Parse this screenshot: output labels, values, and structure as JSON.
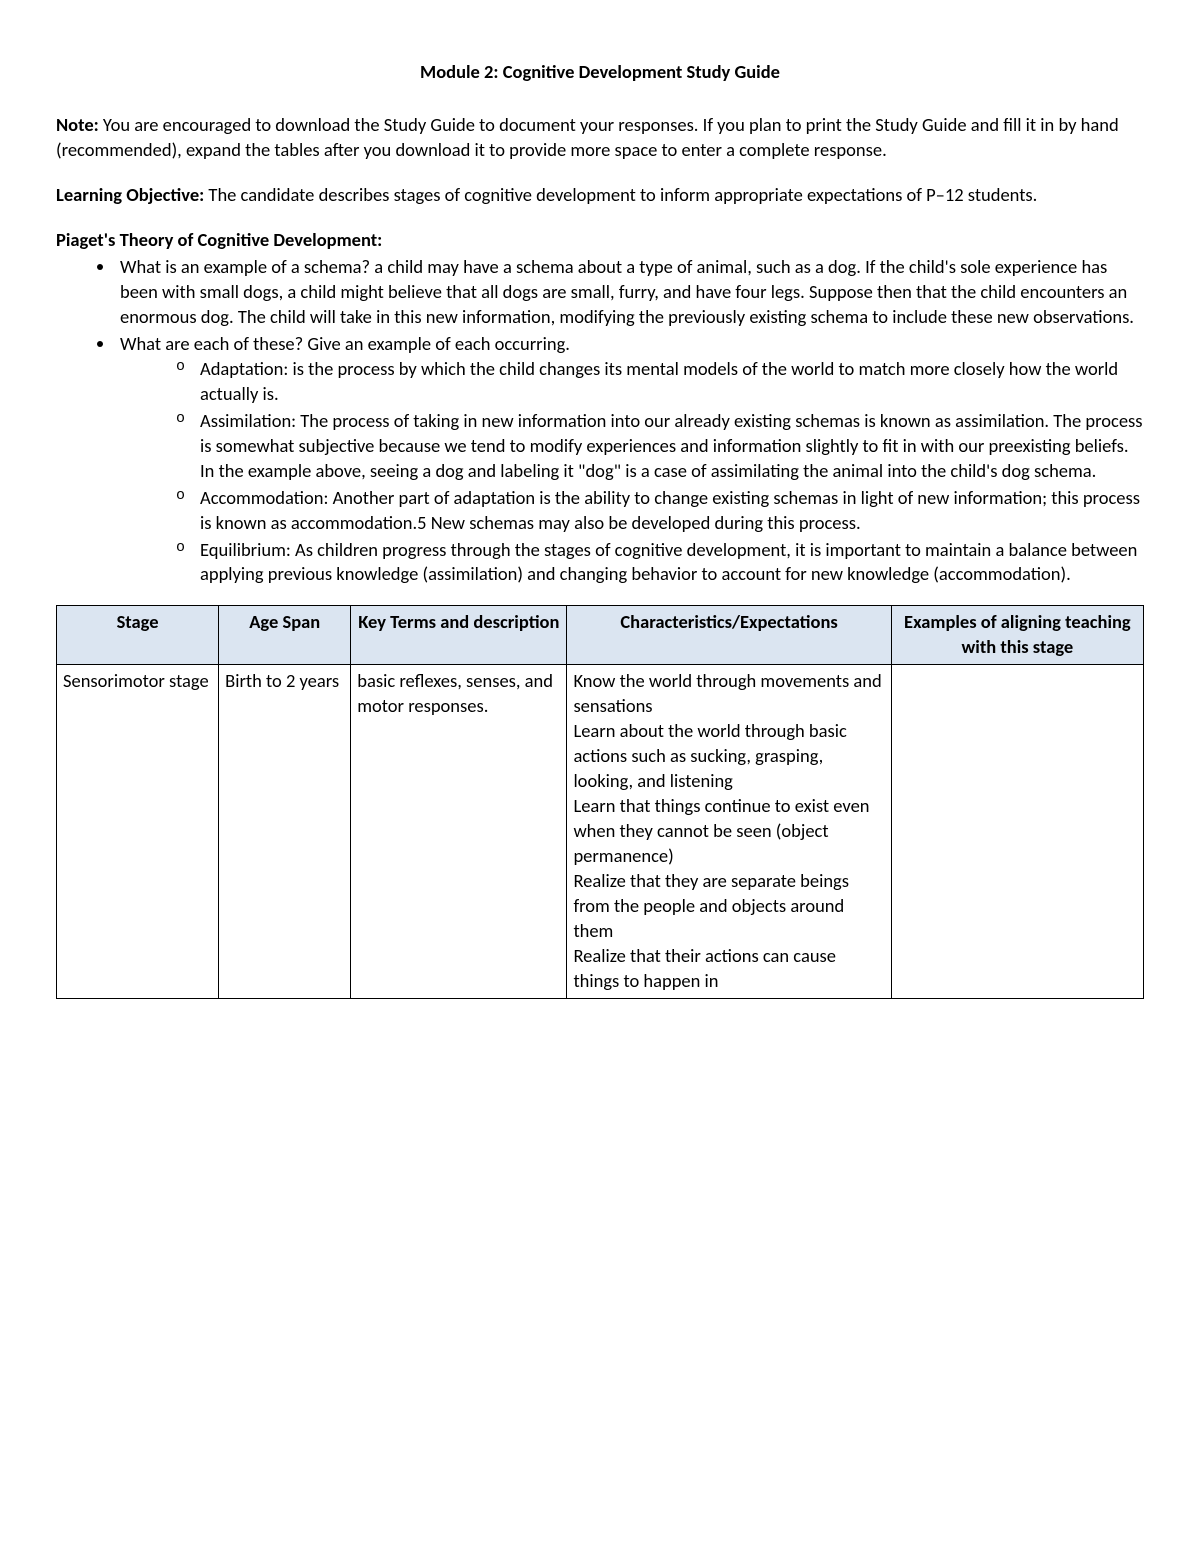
{
  "title": "Module 2: Cognitive Development Study Guide",
  "note": {
    "label": "Note:",
    "text": " You are encouraged to download the Study Guide to document your responses. If you plan to print the Study Guide and fill it in by hand (recommended), expand the tables after you download it to provide more space to enter a complete response."
  },
  "objective": {
    "label": "Learning Objective:",
    "text": "  The candidate describes stages of cognitive development to inform appropriate expectations of P–12 students."
  },
  "piaget": {
    "heading": "Piaget's Theory of Cognitive Development:",
    "bullets": [
      {
        "text": "What is an example of a schema? a child may have a schema about a type of animal, such as a dog. If the child's sole experience has been with small dogs, a child might believe that all dogs are small, furry, and have four legs. Suppose then that the child encounters an enormous dog. The child will take in this new information, modifying the previously existing schema to include these new observations."
      },
      {
        "text": "What are each of these? Give an example of each occurring.",
        "sub": [
          "Adaptation: is the process by which the child changes its mental models of the world to match more closely how the world actually is.",
          "Assimilation: The process of taking in new information into our already existing schemas is known as assimilation. The process is somewhat subjective because we tend to modify experiences and information slightly to fit in with our preexisting beliefs. In the example above, seeing a dog and labeling it \"dog\" is a case of assimilating the animal into the child's dog schema.",
          "Accommodation: Another part of adaptation is the ability to change existing schemas in light of new information; this process is known as accommodation.5 New schemas may also be developed during this process.",
          "Equilibrium: As children progress through the stages of cognitive development, it is important to maintain a balance between applying previous knowledge (assimilation) and changing behavior to account for new knowledge (accommodation)."
        ]
      }
    ]
  },
  "table": {
    "columns": [
      "Stage",
      "Age Span",
      "Key Terms and description",
      "Characteristics/Expectations",
      "Examples of aligning teaching with this stage"
    ],
    "header_bg": "#dbe5f1",
    "border_color": "#000000",
    "col_widths_pct": [
      13.5,
      11,
      18,
      27,
      21
    ],
    "rows": [
      {
        "stage": "Sensorimotor stage",
        "age": "Birth to 2 years",
        "terms": "basic reflexes, senses, and motor responses.",
        "characteristics": "Know the world through movements and sensations\nLearn about the world through basic actions such as sucking, grasping, looking, and listening\nLearn that things continue to exist even when they cannot be seen (object permanence)\nRealize that they are separate beings from the people and objects around them\nRealize that their actions can cause things to happen in",
        "examples": ""
      }
    ]
  },
  "colors": {
    "text": "#000000",
    "background": "#ffffff"
  },
  "typography": {
    "body_fontsize_pt": 14,
    "title_weight": 700
  }
}
